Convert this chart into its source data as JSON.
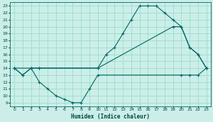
{
  "background_color": "#cceee8",
  "grid_color": "#99ddcc",
  "line_color": "#006666",
  "xlabel": "Humidex (Indice chaleur)",
  "xlim": [
    -0.5,
    23.5
  ],
  "ylim": [
    8.5,
    23.5
  ],
  "xticks": [
    0,
    1,
    2,
    3,
    4,
    5,
    6,
    7,
    8,
    9,
    10,
    11,
    12,
    13,
    14,
    15,
    16,
    17,
    18,
    19,
    20,
    21,
    22,
    23
  ],
  "yticks": [
    9,
    10,
    11,
    12,
    13,
    14,
    15,
    16,
    17,
    18,
    19,
    20,
    21,
    22,
    23
  ],
  "line1_x": [
    0,
    1,
    2,
    3,
    10,
    11,
    12,
    13,
    14,
    15,
    16,
    17,
    18,
    19,
    20,
    21,
    22,
    23
  ],
  "line1_y": [
    14,
    13,
    14,
    14,
    14,
    16,
    17,
    19,
    21,
    23,
    23,
    23,
    22,
    21,
    20,
    17,
    16,
    14
  ],
  "line2_x": [
    0,
    2,
    3,
    10,
    19,
    20,
    21,
    22,
    23
  ],
  "line2_y": [
    14,
    14,
    14,
    14,
    20,
    20,
    17,
    16,
    14
  ],
  "line3_x": [
    0,
    1,
    2,
    3,
    4,
    5,
    6,
    7,
    8,
    9,
    10,
    20,
    21,
    22,
    23
  ],
  "line3_y": [
    14,
    13,
    14,
    12,
    11,
    10,
    9.5,
    9,
    9,
    11,
    13,
    13,
    13,
    13,
    14
  ]
}
